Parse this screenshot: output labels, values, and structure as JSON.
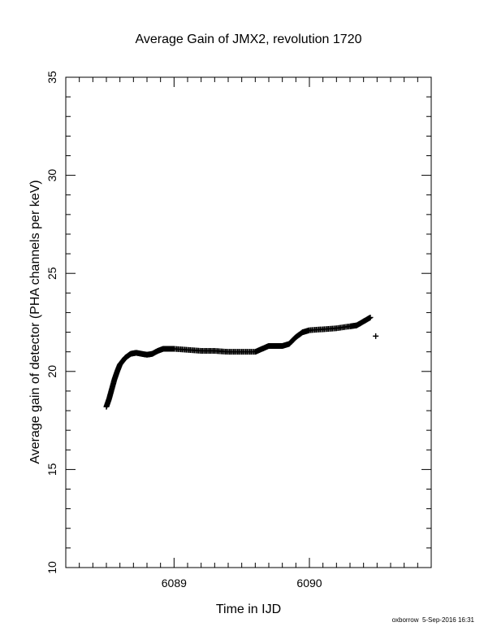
{
  "chart_data": {
    "type": "scatter",
    "title": "Average Gain of JMX2, revolution 1720",
    "xlabel": "Time in IJD",
    "ylabel": "Average gain of detector (PHA channels per keV)",
    "xlim": [
      6088.2,
      6090.9
    ],
    "ylim": [
      10,
      35
    ],
    "xticks": [
      6089,
      6090
    ],
    "yticks": [
      10,
      15,
      20,
      25,
      30,
      35
    ],
    "grid": false,
    "series": [
      {
        "marker": "plus",
        "color": "#000000",
        "x": [
          6088.5,
          6088.52,
          6088.54,
          6088.56,
          6088.58,
          6088.6,
          6088.64,
          6088.68,
          6088.72,
          6088.76,
          6088.8,
          6088.84,
          6088.88,
          6088.92,
          6088.96,
          6089.0,
          6089.1,
          6089.2,
          6089.3,
          6089.4,
          6089.5,
          6089.6,
          6089.65,
          6089.7,
          6089.75,
          6089.8,
          6089.85,
          6089.9,
          6089.95,
          6090.0,
          6090.1,
          6090.2,
          6090.3,
          6090.35,
          6090.4,
          6090.45,
          6090.49
        ],
        "y": [
          18.2,
          18.6,
          19.1,
          19.6,
          20.0,
          20.35,
          20.7,
          20.9,
          20.95,
          20.9,
          20.85,
          20.9,
          21.05,
          21.15,
          21.15,
          21.15,
          21.1,
          21.05,
          21.05,
          21.0,
          21.0,
          21.0,
          21.15,
          21.3,
          21.3,
          21.3,
          21.4,
          21.75,
          22.0,
          22.1,
          22.15,
          22.2,
          22.3,
          22.35,
          22.55,
          22.75,
          21.8
        ]
      }
    ]
  },
  "footer": {
    "user": "oxborrow",
    "date": "5-Sep-2016 16:31"
  }
}
